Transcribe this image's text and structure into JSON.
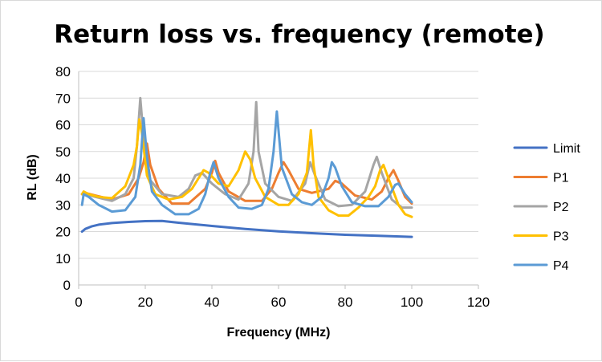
{
  "chart_data": {
    "type": "line",
    "title": "Return loss vs. frequency (remote)",
    "xlabel": "Frequency (MHz)",
    "ylabel": "RL (dB)",
    "xlim": [
      0,
      120
    ],
    "ylim": [
      0,
      80
    ],
    "x_ticks": [
      "0",
      "20",
      "40",
      "60",
      "80",
      "100",
      "120"
    ],
    "y_ticks": [
      "0",
      "10",
      "20",
      "30",
      "40",
      "50",
      "60",
      "70",
      "80"
    ],
    "grid": true,
    "legend_position": "right",
    "series": [
      {
        "name": "Limit",
        "color": "#4472c4",
        "x": [
          1,
          2,
          4,
          6,
          10,
          15,
          20,
          25,
          30,
          40,
          50,
          60,
          70,
          80,
          90,
          100
        ],
        "y": [
          20,
          21,
          22,
          22.6,
          23.2,
          23.6,
          23.9,
          24,
          23.3,
          22.1,
          21,
          20.1,
          19.4,
          18.8,
          18.4,
          18
        ]
      },
      {
        "name": "P1",
        "color": "#ed7d31",
        "x": [
          1,
          2,
          5,
          10,
          15,
          18,
          19.5,
          20.5,
          21.5,
          24,
          28,
          33,
          38,
          40,
          41,
          42,
          45,
          50,
          55,
          58,
          60,
          61.5,
          63,
          66,
          70,
          75,
          77,
          79,
          83,
          88,
          91,
          93,
          94.5,
          96,
          98,
          100
        ],
        "y": [
          34,
          34.5,
          33.5,
          32,
          34,
          40,
          46,
          53,
          45,
          36,
          30.5,
          30.5,
          36,
          42,
          46.5,
          42,
          35,
          31.5,
          31.5,
          36,
          42,
          46,
          43,
          36,
          34.5,
          36,
          39,
          38,
          33.5,
          32,
          35,
          40,
          43,
          39,
          33,
          30.5
        ]
      },
      {
        "name": "P2",
        "color": "#a5a5a5",
        "x": [
          1,
          2,
          5,
          10,
          14,
          16.5,
          17.5,
          18.5,
          19.5,
          21,
          25,
          30,
          33,
          35,
          37,
          40,
          44,
          48,
          51,
          52.5,
          53.3,
          54,
          56,
          60,
          64,
          68,
          69.5,
          71,
          74,
          78,
          82,
          86,
          88.5,
          89.5,
          91,
          94,
          97,
          100
        ],
        "y": [
          34,
          34,
          33,
          31.5,
          34,
          40,
          52,
          70,
          55,
          40,
          34,
          33,
          36,
          41,
          42,
          38,
          34,
          32,
          38,
          50,
          68.5,
          50,
          38,
          33,
          31.5,
          38,
          46,
          41,
          32,
          29.5,
          30,
          35,
          45,
          48,
          42,
          32,
          29,
          29
        ]
      },
      {
        "name": "P3",
        "color": "#ffc000",
        "x": [
          1,
          1.5,
          3,
          6,
          10,
          14,
          16.5,
          17.5,
          18.2,
          19,
          20.5,
          23,
          27,
          31,
          34,
          36,
          37.5,
          39,
          42,
          45,
          48,
          50,
          51.5,
          53,
          56,
          60,
          63,
          66,
          68.5,
          69.7,
          70.5,
          72,
          75,
          78,
          81,
          84,
          87,
          89,
          90.5,
          91.5,
          93,
          96,
          98,
          100
        ],
        "y": [
          34,
          35,
          34,
          33,
          32.5,
          37,
          45,
          52,
          62,
          57,
          41,
          34,
          32,
          33,
          36,
          40,
          43,
          42,
          38,
          37,
          43,
          50,
          47,
          40,
          33,
          30,
          30,
          34,
          42,
          58,
          45,
          33,
          28,
          26,
          26,
          29,
          33,
          37,
          43,
          45,
          40,
          30,
          26.5,
          25.5
        ]
      },
      {
        "name": "P4",
        "color": "#5b9bd5",
        "x": [
          1,
          1.5,
          3,
          6,
          10,
          14,
          17,
          18.5,
          19.5,
          20.5,
          22,
          25,
          29,
          33,
          36,
          38,
          39.5,
          40.5,
          42,
          45,
          48,
          52,
          55,
          57,
          58.5,
          59.5,
          61,
          64,
          67,
          70,
          73,
          75,
          76,
          77,
          79,
          82,
          86,
          90,
          93,
          95,
          96,
          98,
          100
        ],
        "y": [
          30,
          34,
          33,
          30,
          27.5,
          28,
          33,
          45,
          62.5,
          48,
          35,
          30,
          26.5,
          26.5,
          28.5,
          34,
          42,
          46,
          40,
          33,
          29,
          28.5,
          30,
          36,
          50,
          65,
          44,
          34,
          31,
          30,
          33,
          40,
          46,
          44,
          37,
          31,
          29.5,
          29.5,
          33,
          37.5,
          38,
          34,
          31
        ]
      }
    ]
  }
}
